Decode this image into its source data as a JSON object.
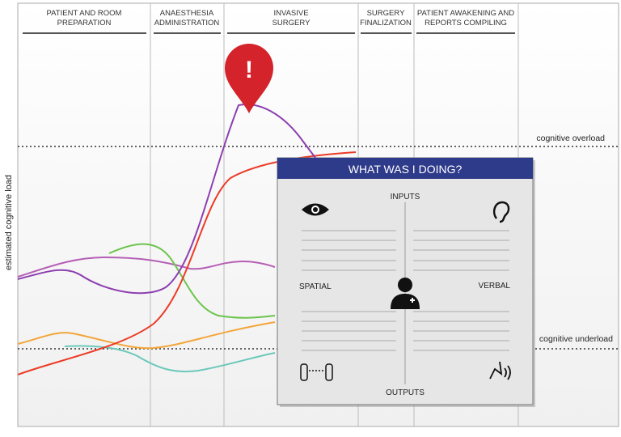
{
  "phases": [
    {
      "lines": [
        "PATIENT AND ROOM",
        "PREPARATION"
      ]
    },
    {
      "lines": [
        "ANAESTHESIA",
        "ADMINISTRATION"
      ]
    },
    {
      "lines": [
        "INVASIVE",
        "SURGERY"
      ]
    },
    {
      "lines": [
        "SURGERY",
        "FINALIZATION"
      ]
    },
    {
      "lines": [
        "PATIENT AWAKENING AND",
        "REPORTS COMPILING"
      ]
    }
  ],
  "y_axis_label": "estimated cognitive load",
  "overload_label": "cognitive overload",
  "underload_label": "cognitive underload",
  "alert": "!",
  "panel": {
    "title": "WHAT WAS I DOING?",
    "inputs": "INPUTS",
    "outputs": "OUTPUTS",
    "spatial": "SPATIAL",
    "verbal": "VERBAL"
  }
}
